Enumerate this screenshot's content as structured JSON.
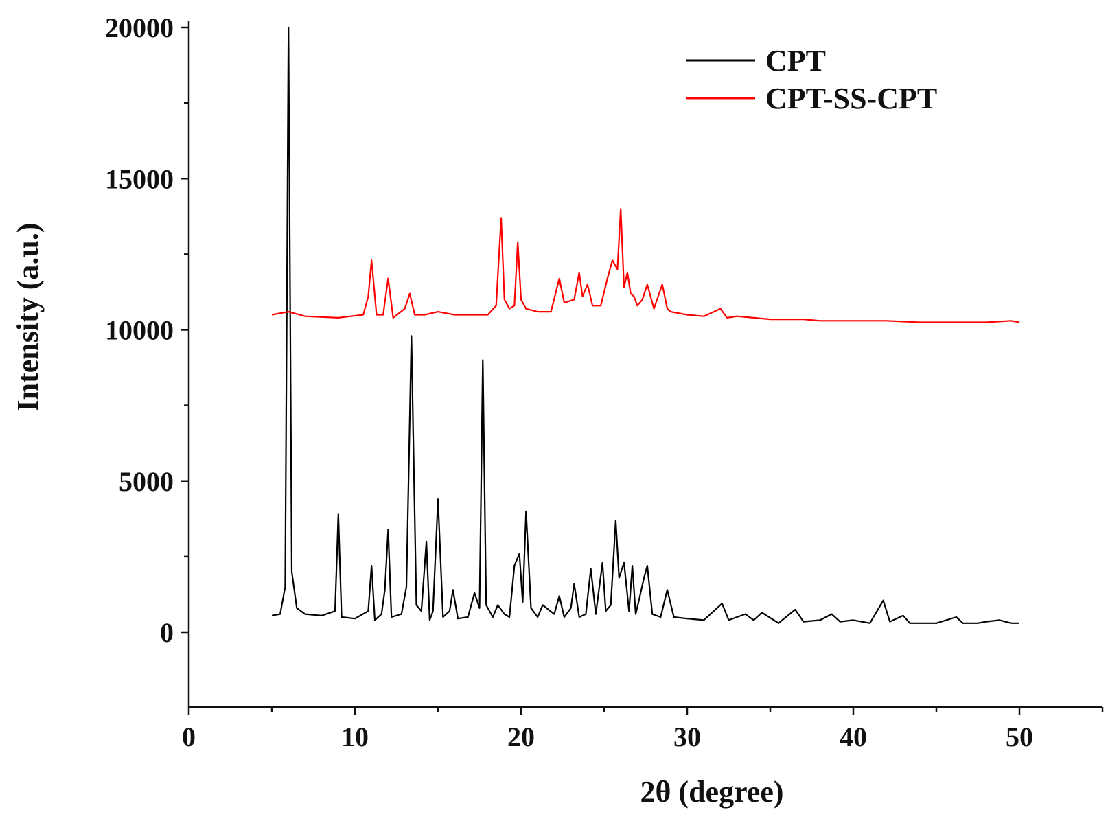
{
  "chart_data": {
    "type": "line",
    "title": "",
    "xlabel": "2θ (degree)",
    "ylabel": "Intensity (a.u.)",
    "xlim": [
      0,
      55
    ],
    "ylim": [
      -2500,
      20000
    ],
    "x_ticks": [
      0,
      10,
      20,
      30,
      40,
      50
    ],
    "y_ticks": [
      0,
      5000,
      10000,
      15000,
      20000
    ],
    "x_tick_labels": [
      "0",
      "10",
      "20",
      "30",
      "40",
      "50"
    ],
    "y_tick_labels": [
      "0",
      "5000",
      "10000",
      "15000",
      "20000"
    ],
    "grid": false,
    "legend_position": "top-right",
    "series": [
      {
        "name": "CPT",
        "color": "#000000",
        "x": [
          5.0,
          5.5,
          5.8,
          6.0,
          6.2,
          6.5,
          7.0,
          8.0,
          8.8,
          9.0,
          9.2,
          10.0,
          10.8,
          11.0,
          11.2,
          11.6,
          11.8,
          12.0,
          12.2,
          12.8,
          13.1,
          13.4,
          13.7,
          14.0,
          14.3,
          14.5,
          14.7,
          15.0,
          15.3,
          15.7,
          15.9,
          16.2,
          16.8,
          17.2,
          17.5,
          17.7,
          17.9,
          18.3,
          18.6,
          19.0,
          19.3,
          19.6,
          19.9,
          20.1,
          20.3,
          20.6,
          21.0,
          21.3,
          22.0,
          22.3,
          22.6,
          23.0,
          23.2,
          23.5,
          23.9,
          24.2,
          24.5,
          24.9,
          25.1,
          25.4,
          25.7,
          25.9,
          26.2,
          26.5,
          26.7,
          26.9,
          27.2,
          27.4,
          27.6,
          27.9,
          28.4,
          28.8,
          29.2,
          30.0,
          31.0,
          32.1,
          32.5,
          33.5,
          34.0,
          34.5,
          35.5,
          36.5,
          37.0,
          38.0,
          38.7,
          39.2,
          40.0,
          41.0,
          41.8,
          42.2,
          43.0,
          43.4,
          44.0,
          45.0,
          46.2,
          46.6,
          47.5,
          48.0,
          48.8,
          49.5,
          50.0
        ],
        "y": [
          550,
          600,
          1500,
          20000,
          2000,
          800,
          600,
          550,
          700,
          3900,
          500,
          450,
          700,
          2200,
          400,
          600,
          1400,
          3400,
          500,
          600,
          1500,
          9800,
          900,
          700,
          3000,
          400,
          700,
          4400,
          500,
          700,
          1400,
          450,
          500,
          1300,
          800,
          9000,
          900,
          500,
          900,
          600,
          500,
          2200,
          2600,
          1000,
          4000,
          800,
          500,
          900,
          600,
          1200,
          500,
          800,
          1600,
          500,
          600,
          2100,
          600,
          2300,
          700,
          900,
          3700,
          1800,
          2300,
          700,
          2200,
          600,
          1300,
          1800,
          2200,
          600,
          500,
          1400,
          500,
          450,
          400,
          950,
          400,
          600,
          400,
          650,
          300,
          750,
          350,
          400,
          600,
          350,
          400,
          300,
          1050,
          350,
          550,
          300,
          300,
          300,
          500,
          300,
          300,
          350,
          400,
          300,
          300
        ]
      },
      {
        "name": "CPT-SS-CPT",
        "color": "#ff0000",
        "x": [
          5.0,
          6.0,
          7.0,
          9.0,
          10.5,
          10.8,
          11.0,
          11.3,
          11.7,
          12.0,
          12.3,
          13.0,
          13.3,
          13.6,
          14.2,
          15.0,
          16.0,
          17.0,
          18.0,
          18.5,
          18.8,
          19.0,
          19.3,
          19.6,
          19.8,
          20.0,
          20.3,
          21.0,
          21.8,
          22.3,
          22.6,
          23.2,
          23.5,
          23.7,
          24.0,
          24.3,
          24.8,
          25.2,
          25.5,
          25.8,
          26.0,
          26.2,
          26.4,
          26.6,
          26.8,
          27.0,
          27.3,
          27.6,
          28.0,
          28.5,
          28.8,
          29.0,
          30.0,
          31.0,
          32.0,
          32.4,
          33.0,
          34.0,
          35.0,
          36.0,
          37.0,
          38.0,
          39.0,
          40.0,
          42.0,
          44.0,
          46.0,
          48.0,
          49.5,
          50.0
        ],
        "y": [
          10500,
          10600,
          10450,
          10400,
          10500,
          11100,
          12300,
          10500,
          10500,
          11700,
          10400,
          10700,
          11200,
          10500,
          10500,
          10600,
          10500,
          10500,
          10500,
          10800,
          13700,
          11000,
          10700,
          10800,
          12900,
          11000,
          10700,
          10600,
          10600,
          11700,
          10900,
          11000,
          11900,
          11100,
          11500,
          10800,
          10800,
          11700,
          12300,
          12000,
          14000,
          11400,
          11900,
          11200,
          11100,
          10800,
          11000,
          11500,
          10700,
          11500,
          10700,
          10600,
          10500,
          10450,
          10700,
          10400,
          10450,
          10400,
          10350,
          10350,
          10350,
          10300,
          10300,
          10300,
          10300,
          10250,
          10250,
          10250,
          10300,
          10250
        ]
      }
    ]
  }
}
